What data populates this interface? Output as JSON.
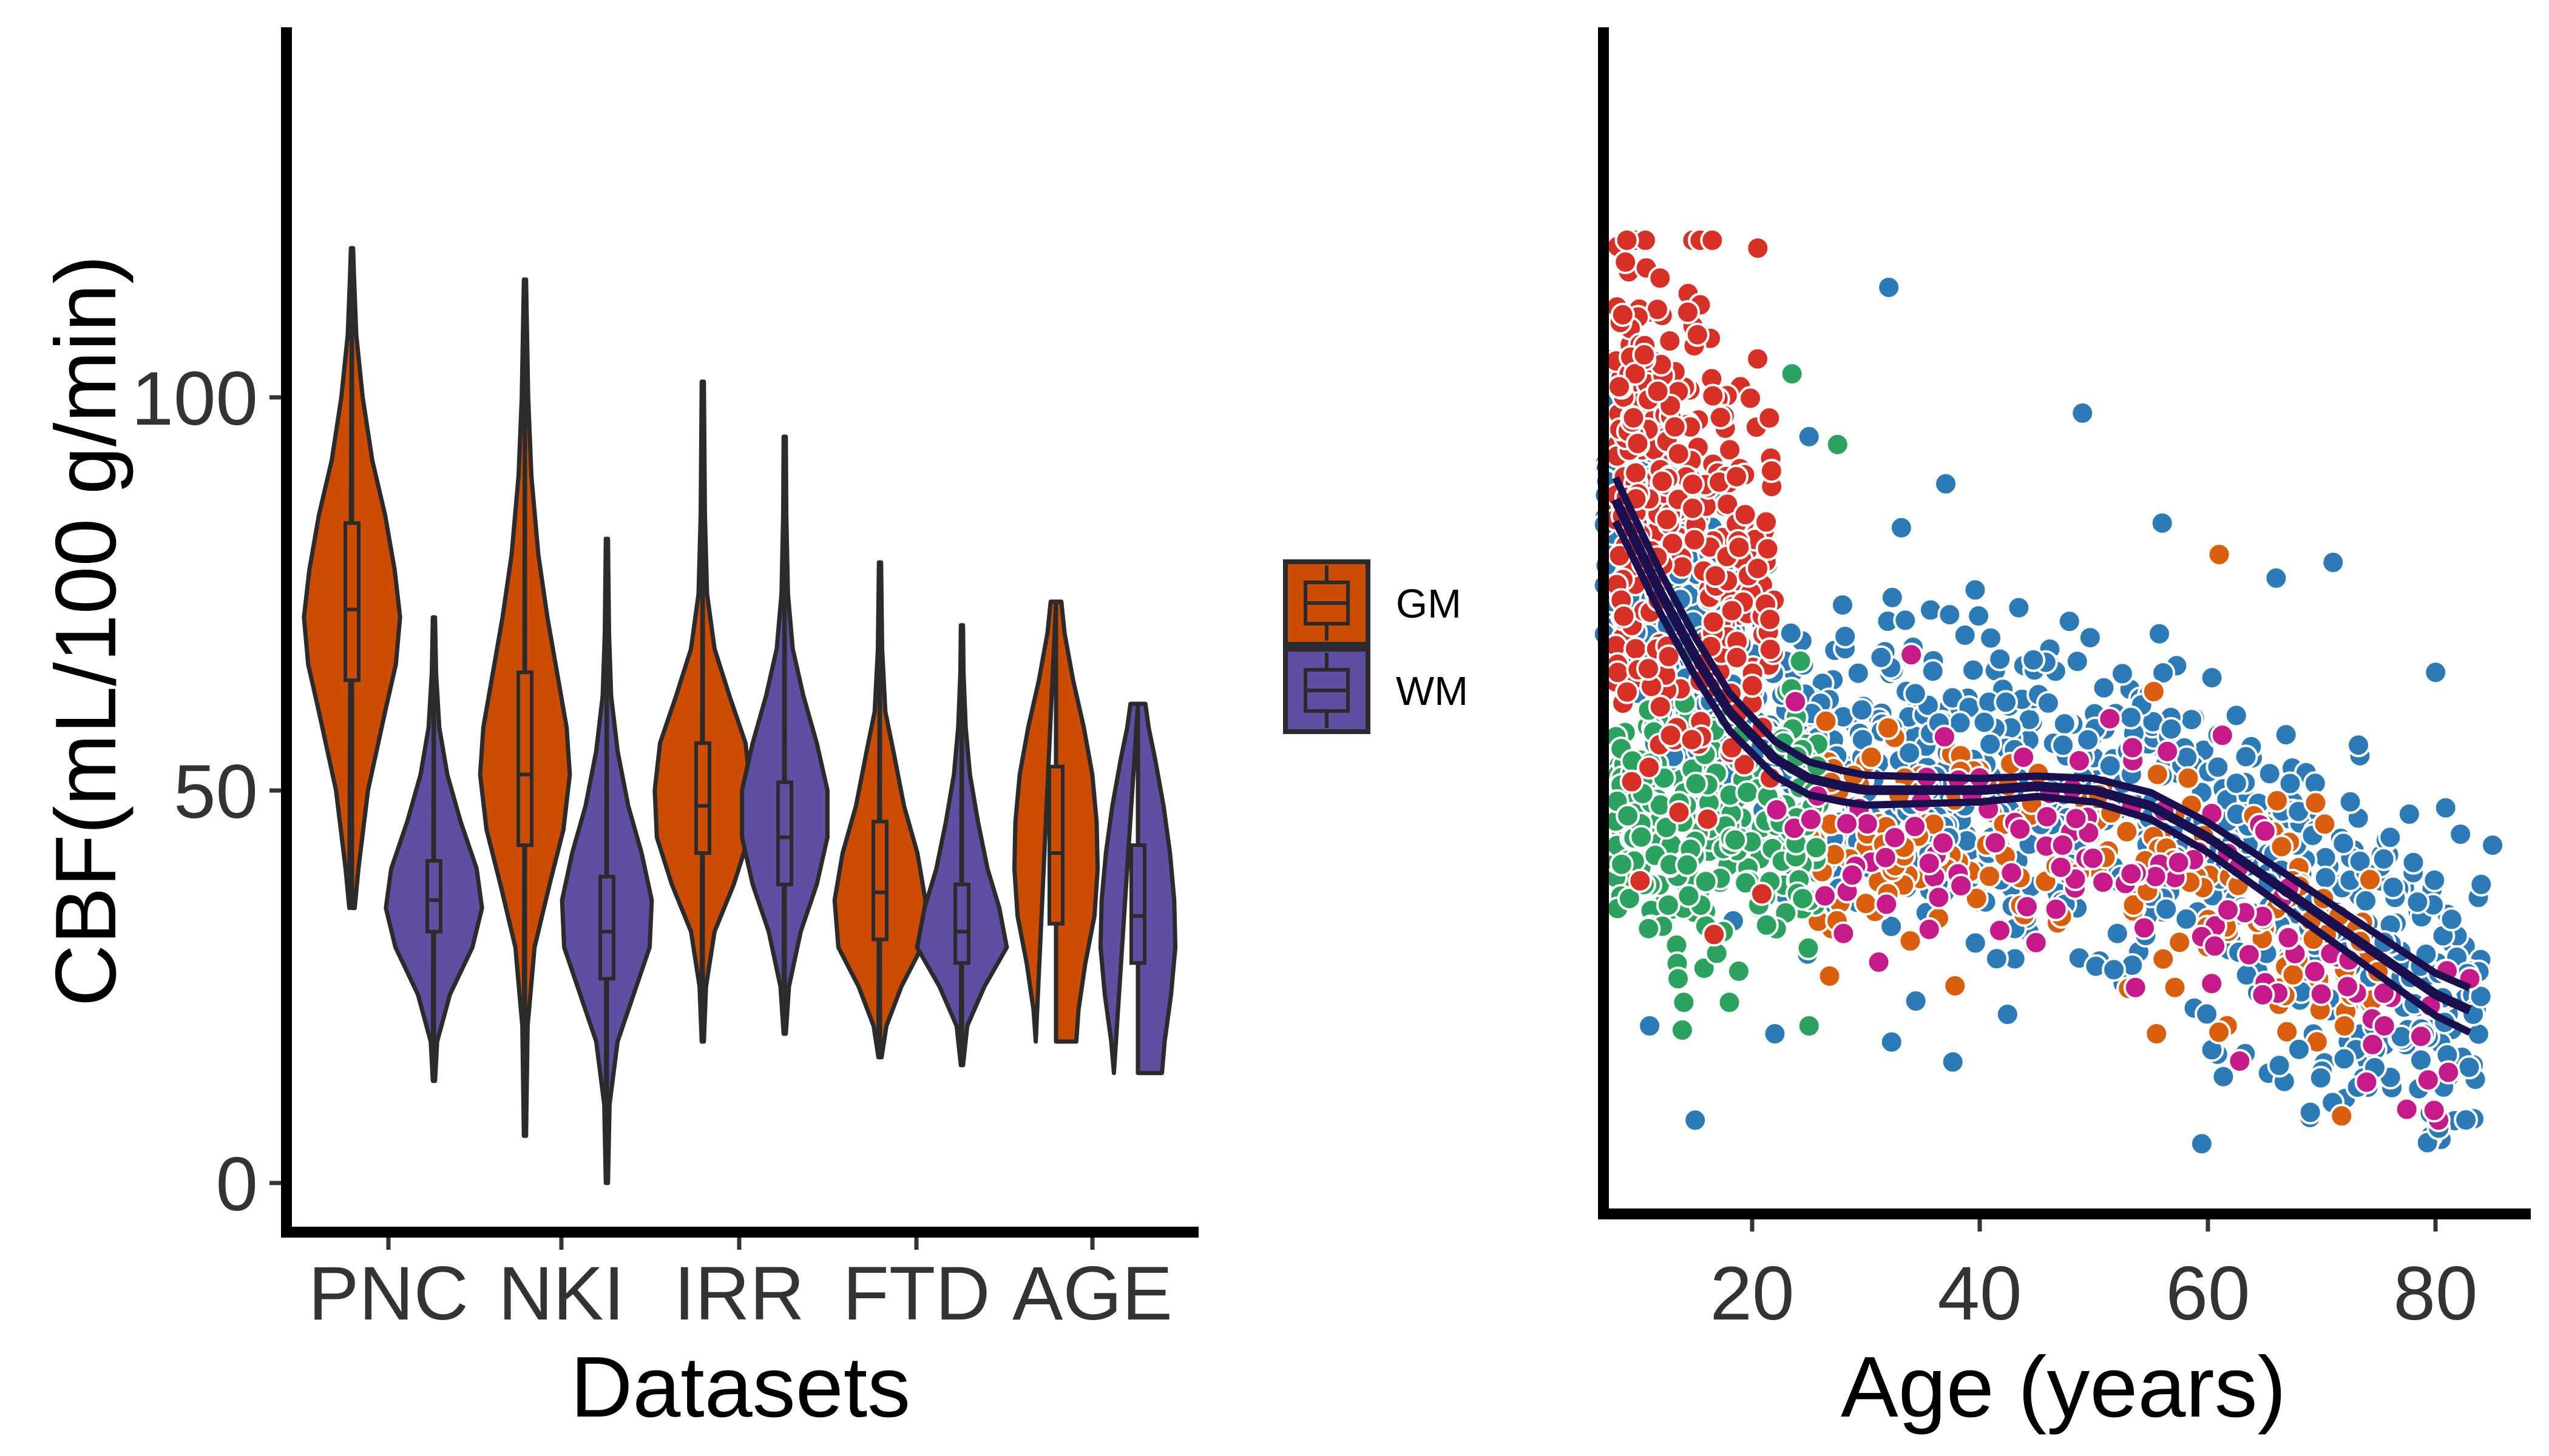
{
  "colors": {
    "gm": "#cc4c02",
    "wm": "#5e4fa2",
    "outline": "#2b2b2b",
    "axis": "#000000",
    "fit_line": "#1a0f4f",
    "dataset_colors": {
      "PNC": "#d73027",
      "NKI": "#2c7bb6",
      "IRR": "#2ca25f",
      "FTD": "#d95f0e",
      "AGE": "#c51b8a"
    }
  },
  "legend": {
    "items": [
      {
        "label": "GM",
        "color": "#cc4c02"
      },
      {
        "label": "WM",
        "color": "#5e4fa2"
      }
    ],
    "position": "between panels"
  },
  "chart_data": [
    {
      "type": "violin",
      "title": "",
      "xlabel": "Datasets",
      "ylabel": "CBF(mL/100 g/min)",
      "categories": [
        "PNC",
        "NKI",
        "IRR",
        "FTD",
        "AGE"
      ],
      "ylim": [
        -7,
        148
      ],
      "yticks": [
        "0",
        "50",
        "100"
      ],
      "series": [
        {
          "name": "GM",
          "groups": [
            {
              "category": "PNC",
              "min": 35,
              "q1": 64,
              "median": 73,
              "q3": 84,
              "max": 119,
              "width": [
                [
                  35,
                  0.05
                ],
                [
                  40,
                  0.12
                ],
                [
                  50,
                  0.3
                ],
                [
                  60,
                  0.62
                ],
                [
                  66,
                  0.82
                ],
                [
                  72,
                  0.9
                ],
                [
                  78,
                  0.8
                ],
                [
                  85,
                  0.62
                ],
                [
                  92,
                  0.38
                ],
                [
                  100,
                  0.2
                ],
                [
                  108,
                  0.08
                ],
                [
                  115,
                  0.04
                ],
                [
                  119,
                  0.02
                ]
              ]
            },
            {
              "category": "NKI",
              "min": 6,
              "q1": 43,
              "median": 52,
              "q3": 65,
              "max": 115,
              "width": [
                [
                  6,
                  0.02
                ],
                [
                  20,
                  0.05
                ],
                [
                  30,
                  0.18
                ],
                [
                  38,
                  0.46
                ],
                [
                  45,
                  0.72
                ],
                [
                  52,
                  0.84
                ],
                [
                  58,
                  0.78
                ],
                [
                  65,
                  0.6
                ],
                [
                  72,
                  0.42
                ],
                [
                  80,
                  0.25
                ],
                [
                  90,
                  0.12
                ],
                [
                  100,
                  0.06
                ],
                [
                  115,
                  0.02
                ]
              ]
            },
            {
              "category": "IRR",
              "min": 18,
              "q1": 42,
              "median": 48,
              "q3": 56,
              "max": 102,
              "width": [
                [
                  18,
                  0.02
                ],
                [
                  25,
                  0.06
                ],
                [
                  32,
                  0.22
                ],
                [
                  38,
                  0.58
                ],
                [
                  44,
                  0.86
                ],
                [
                  50,
                  0.9
                ],
                [
                  56,
                  0.8
                ],
                [
                  62,
                  0.5
                ],
                [
                  68,
                  0.22
                ],
                [
                  75,
                  0.08
                ],
                [
                  85,
                  0.04
                ],
                [
                  102,
                  0.02
                ]
              ]
            },
            {
              "category": "FTD",
              "min": 16,
              "q1": 31,
              "median": 37,
              "q3": 46,
              "max": 79,
              "width": [
                [
                  16,
                  0.03
                ],
                [
                  20,
                  0.12
                ],
                [
                  25,
                  0.4
                ],
                [
                  30,
                  0.78
                ],
                [
                  36,
                  0.85
                ],
                [
                  42,
                  0.7
                ],
                [
                  48,
                  0.45
                ],
                [
                  55,
                  0.25
                ],
                [
                  60,
                  0.1
                ],
                [
                  68,
                  0.04
                ],
                [
                  79,
                  0.02
                ]
              ]
            },
            {
              "category": "AGE",
              "min": 18,
              "q1": 33,
              "median": 42,
              "q3": 53,
              "max": 74,
              "width": [
                [
                  18,
                  0.38
                ],
                [
                  22,
                  0.42
                ],
                [
                  28,
                  0.55
                ],
                [
                  34,
                  0.72
                ],
                [
                  40,
                  0.78
                ],
                [
                  46,
                  0.76
                ],
                [
                  52,
                  0.68
                ],
                [
                  58,
                  0.52
                ],
                [
                  64,
                  0.32
                ],
                [
                  70,
                  0.16
                ],
                [
                  74,
                  0.1
                ]
              ]
            }
          ]
        },
        {
          "name": "WM",
          "groups": [
            {
              "category": "PNC",
              "min": 13,
              "q1": 32,
              "median": 36,
              "q3": 41,
              "max": 72,
              "width": [
                [
                  13,
                  0.02
                ],
                [
                  18,
                  0.06
                ],
                [
                  24,
                  0.3
                ],
                [
                  30,
                  0.72
                ],
                [
                  35,
                  0.9
                ],
                [
                  40,
                  0.8
                ],
                [
                  46,
                  0.5
                ],
                [
                  52,
                  0.25
                ],
                [
                  58,
                  0.1
                ],
                [
                  65,
                  0.04
                ],
                [
                  72,
                  0.02
                ]
              ]
            },
            {
              "category": "NKI",
              "min": 0,
              "q1": 26,
              "median": 32,
              "q3": 39,
              "max": 82,
              "width": [
                [
                  0,
                  0.02
                ],
                [
                  10,
                  0.05
                ],
                [
                  18,
                  0.2
                ],
                [
                  25,
                  0.55
                ],
                [
                  30,
                  0.8
                ],
                [
                  36,
                  0.84
                ],
                [
                  42,
                  0.65
                ],
                [
                  48,
                  0.4
                ],
                [
                  55,
                  0.2
                ],
                [
                  62,
                  0.08
                ],
                [
                  70,
                  0.04
                ],
                [
                  82,
                  0.02
                ]
              ]
            },
            {
              "category": "IRR",
              "min": 19,
              "q1": 38,
              "median": 44,
              "q3": 51,
              "max": 95,
              "width": [
                [
                  19,
                  0.02
                ],
                [
                  25,
                  0.08
                ],
                [
                  32,
                  0.3
                ],
                [
                  38,
                  0.6
                ],
                [
                  44,
                  0.8
                ],
                [
                  50,
                  0.8
                ],
                [
                  56,
                  0.6
                ],
                [
                  62,
                  0.35
                ],
                [
                  68,
                  0.15
                ],
                [
                  75,
                  0.06
                ],
                [
                  85,
                  0.03
                ],
                [
                  95,
                  0.02
                ]
              ]
            },
            {
              "category": "FTD",
              "min": 15,
              "q1": 28,
              "median": 32,
              "q3": 38,
              "max": 71,
              "width": [
                [
                  15,
                  0.02
                ],
                [
                  20,
                  0.1
                ],
                [
                  25,
                  0.42
                ],
                [
                  30,
                  0.84
                ],
                [
                  35,
                  0.7
                ],
                [
                  40,
                  0.48
                ],
                [
                  46,
                  0.3
                ],
                [
                  52,
                  0.15
                ],
                [
                  58,
                  0.07
                ],
                [
                  65,
                  0.03
                ],
                [
                  71,
                  0.02
                ]
              ]
            },
            {
              "category": "AGE",
              "min": 14,
              "q1": 28,
              "median": 34,
              "q3": 43,
              "max": 61,
              "width": [
                [
                  14,
                  0.45
                ],
                [
                  18,
                  0.5
                ],
                [
                  24,
                  0.62
                ],
                [
                  30,
                  0.7
                ],
                [
                  36,
                  0.68
                ],
                [
                  42,
                  0.6
                ],
                [
                  48,
                  0.48
                ],
                [
                  54,
                  0.32
                ],
                [
                  58,
                  0.2
                ],
                [
                  61,
                  0.14
                ]
              ]
            }
          ]
        }
      ]
    },
    {
      "type": "scatter",
      "title": "",
      "xlabel": "Age (years)",
      "ylabel": "",
      "xlim": [
        7,
        87
      ],
      "ylim": [
        -7,
        148
      ],
      "xticks": [
        "20",
        "40",
        "60",
        "80"
      ],
      "yticks": [],
      "groups": [
        {
          "dataset": "PNC",
          "x_range": [
            8,
            22
          ],
          "y_center": 88,
          "y_spread": 18,
          "n": 360
        },
        {
          "dataset": "IRR",
          "x_range": [
            8,
            26
          ],
          "y_center": 45,
          "y_spread": 10,
          "n": 280
        },
        {
          "dataset": "NKI",
          "x_range": [
            7,
            84
          ],
          "y_center": 52,
          "y_spread": 12,
          "n": 1200
        },
        {
          "dataset": "FTD",
          "x_range": [
            25,
            75
          ],
          "y_center": 42,
          "y_spread": 9,
          "n": 200
        },
        {
          "dataset": "AGE",
          "x_range": [
            22,
            82
          ],
          "y_center": 40,
          "y_spread": 10,
          "n": 120
        }
      ],
      "outliers": [
        [
          20.5,
          119,
          "PNC"
        ],
        [
          32,
          114,
          "NKI"
        ],
        [
          49,
          98,
          "NKI"
        ],
        [
          23.5,
          103,
          "IRR"
        ],
        [
          25,
          95,
          "NKI"
        ],
        [
          27.5,
          94,
          "IRR"
        ],
        [
          37,
          89,
          "NKI"
        ],
        [
          56,
          84,
          "NKI"
        ],
        [
          61,
          80,
          "FTD"
        ],
        [
          71,
          79,
          "NKI"
        ],
        [
          66,
          77,
          "NKI"
        ],
        [
          80,
          65,
          "NKI"
        ],
        [
          85,
          43,
          "NKI"
        ],
        [
          15,
          8,
          "NKI"
        ],
        [
          69,
          9,
          "NKI"
        ],
        [
          22,
          19,
          "NKI"
        ],
        [
          11,
          20,
          "NKI"
        ],
        [
          14,
          23,
          "IRR"
        ],
        [
          18,
          23,
          "IRR"
        ],
        [
          13.5,
          26,
          "IRR"
        ],
        [
          25,
          20,
          "IRR"
        ],
        [
          55.5,
          19,
          "FTD"
        ],
        [
          72,
          20,
          "FTD"
        ],
        [
          75.5,
          20,
          "AGE"
        ],
        [
          68,
          17,
          "NKI"
        ],
        [
          83,
          26,
          "AGE"
        ],
        [
          81,
          27,
          "AGE"
        ],
        [
          84,
          38,
          "NKI"
        ]
      ],
      "fit": {
        "x": [
          8,
          10,
          12,
          15,
          18,
          20,
          22,
          25,
          28,
          30,
          35,
          40,
          45,
          50,
          55,
          60,
          65,
          70,
          75,
          80,
          83
        ],
        "y": [
          87,
          81,
          75,
          67,
          60,
          57,
          54,
          51.5,
          50.5,
          50,
          50,
          50,
          50.5,
          50,
          48,
          44,
          39,
          34,
          29,
          24,
          22
        ]
      }
    }
  ]
}
